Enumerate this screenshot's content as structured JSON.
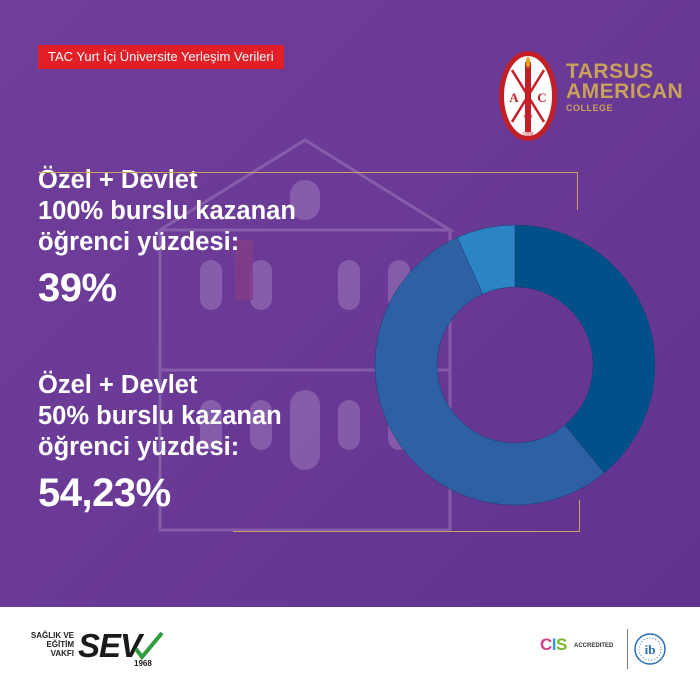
{
  "banner": {
    "text": "TAC Yurt İçi Üniversite Yerleşim Verileri"
  },
  "logo": {
    "badge_letters": [
      "A",
      "C",
      "T"
    ],
    "badge_year": "1888",
    "line1": "TARSUS",
    "line2": "AMERICAN",
    "line3": "COLLEGE"
  },
  "stats": [
    {
      "label": "Özel + Devlet\n100% burslu kazanan\nöğrenci yüzdesi:",
      "value": "39%"
    },
    {
      "label": "Özel + Devlet\n50% burslu kazanan\nöğrenci yüzdesi:",
      "value": "54,23%"
    }
  ],
  "chart_data": {
    "type": "pie",
    "variant": "donut",
    "title": "",
    "values": [
      39,
      54.23,
      6.77
    ],
    "colors": [
      "#00508a",
      "#2d61a3",
      "#2b84c3"
    ]
  },
  "colors": {
    "background": "#6a3a96",
    "banner": "#e21f26",
    "gold": "#c9a25e"
  },
  "footer": {
    "sev": {
      "small_lines": [
        "SAĞLIK VE",
        "EĞİTİM",
        "VAKFI"
      ],
      "big": "SEV",
      "year": "1968"
    },
    "cis": {
      "big": "CIS",
      "small": "ACCREDITED"
    },
    "ib_icon": "ib-logo-icon"
  }
}
